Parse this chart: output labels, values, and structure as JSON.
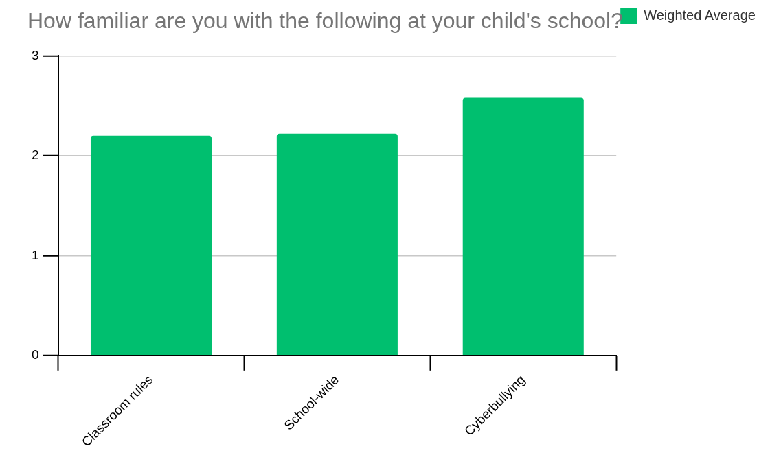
{
  "chart_data": {
    "type": "bar",
    "title": "How familiar are you with the following at your child's school?",
    "categories": [
      "Classroom rules",
      "School-wide",
      "Cyberbullying"
    ],
    "series": [
      {
        "name": "Weighted Average",
        "color": "#00bf6f",
        "values": [
          2.2,
          2.22,
          2.58
        ]
      }
    ],
    "ylim": [
      0,
      3
    ],
    "yticks": [
      0,
      1,
      2,
      3
    ],
    "grid": "y",
    "legend": "top right"
  }
}
